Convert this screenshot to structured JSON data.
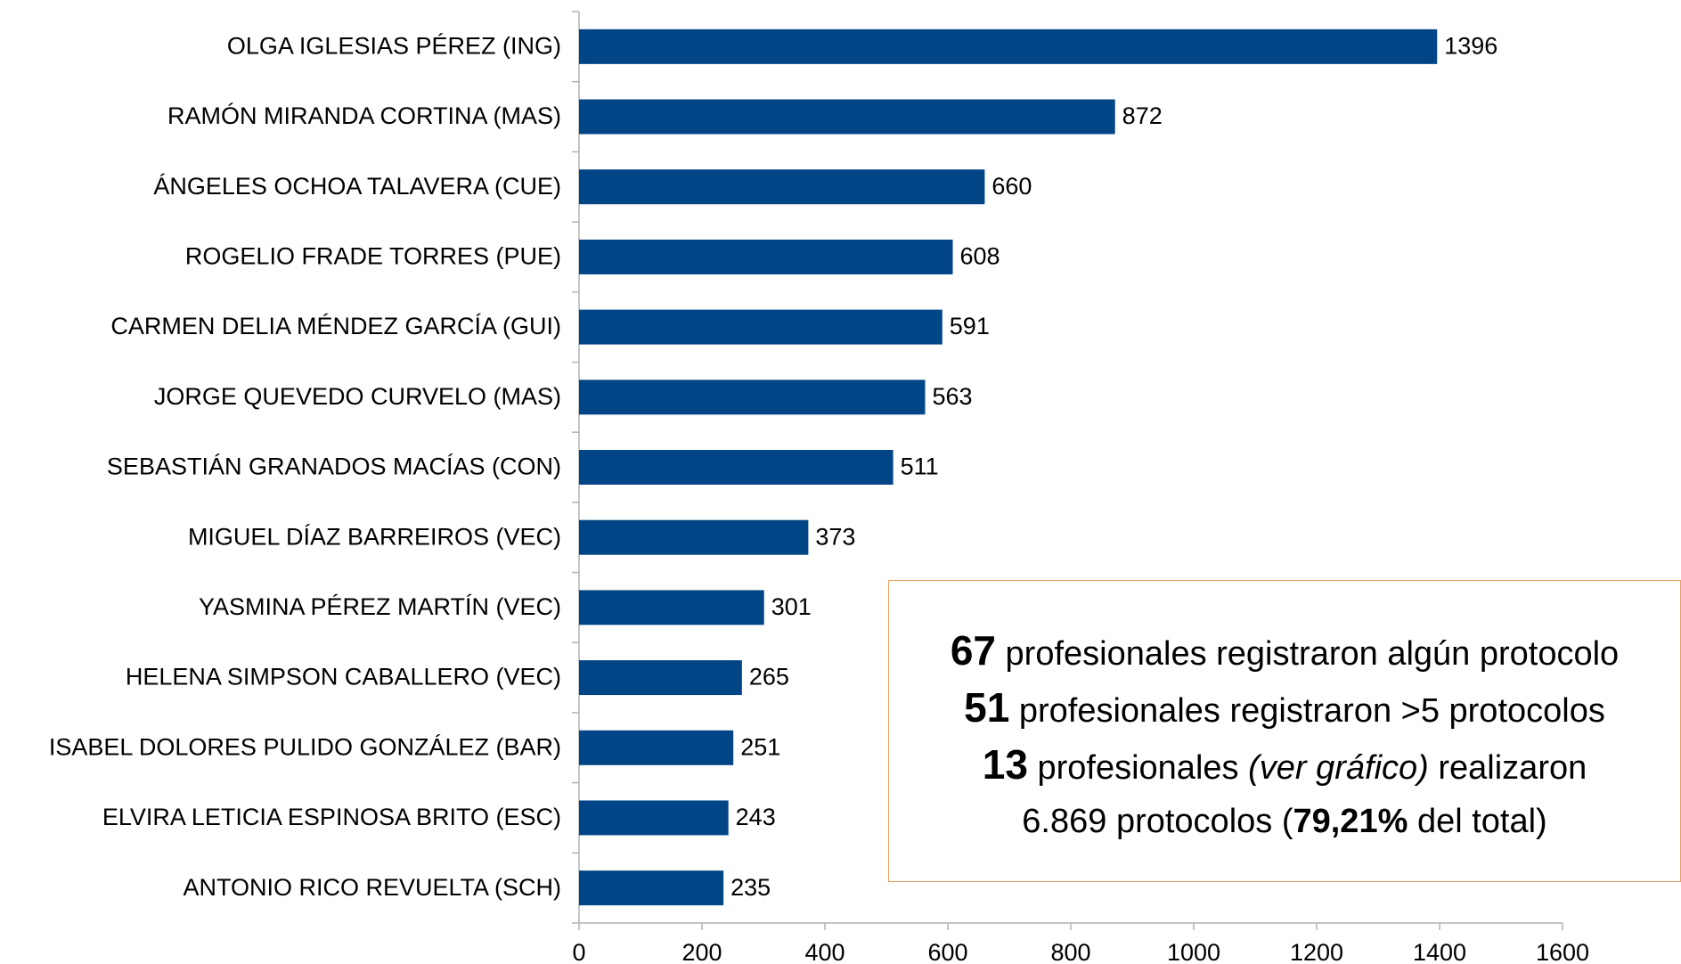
{
  "chart_data": {
    "type": "bar",
    "orientation": "horizontal",
    "categories": [
      "OLGA IGLESIAS PÉREZ (ING)",
      "RAMÓN MIRANDA CORTINA (MAS)",
      "ÁNGELES OCHOA TALAVERA (CUE)",
      "ROGELIO FRADE TORRES (PUE)",
      "CARMEN DELIA MÉNDEZ GARCÍA (GUI)",
      "JORGE QUEVEDO CURVELO (MAS)",
      "SEBASTIÁN GRANADOS MACÍAS (CON)",
      "MIGUEL DÍAZ BARREIROS (VEC)",
      "YASMINA PÉREZ MARTÍN (VEC)",
      "HELENA SIMPSON CABALLERO (VEC)",
      "ISABEL DOLORES PULIDO GONZÁLEZ (BAR)",
      "ELVIRA LETICIA ESPINOSA BRITO (ESC)",
      "ANTONIO RICO REVUELTA (SCH)"
    ],
    "values": [
      1396,
      872,
      660,
      608,
      591,
      563,
      511,
      373,
      301,
      265,
      251,
      243,
      235
    ],
    "color": "#004586",
    "xlim": [
      0,
      1600
    ],
    "xticks": [
      0,
      200,
      400,
      600,
      800,
      1000,
      1200,
      1400,
      1600
    ],
    "annotation": [
      [
        "67",
        "profesionales registraron algún protocolo"
      ],
      [
        "51",
        "profesionales registraron >5 protocolos"
      ],
      [
        "13",
        "profesionales",
        "(ver gráfico)",
        "realizaron"
      ],
      [
        "6.869 protocolos (",
        "79,21%",
        "del total)"
      ]
    ]
  }
}
